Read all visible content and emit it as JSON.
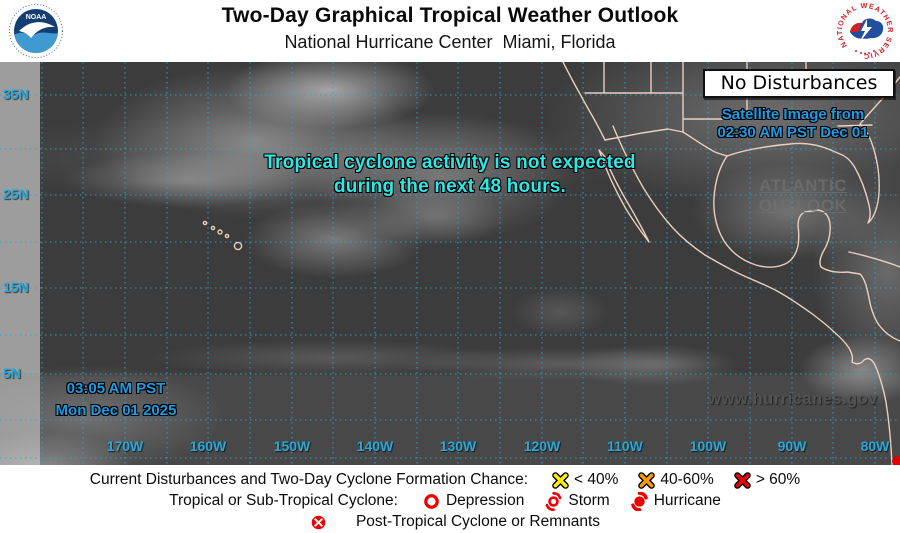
{
  "header": {
    "title": "Two-Day Graphical Tropical Weather Outlook",
    "subtitle": "National Hurricane Center  Miami, Florida",
    "noaa_logo_text": "NOAA",
    "nws_logo_text": "NATIONAL WEATHER SERVICE"
  },
  "map": {
    "status": "No Disturbances",
    "satellite_info": {
      "line1": "Satellite Image from",
      "line2": "02:30 AM PST Dec 01"
    },
    "atlantic_link": {
      "line1": "ATLANTIC",
      "line2": "OUTLOOK"
    },
    "message": {
      "line1": "Tropical cyclone activity is not expected",
      "line2": "during the next 48 hours."
    },
    "issued": {
      "line1": "03:05 AM PST",
      "line2": "Mon Dec 01 2025"
    },
    "website": "www.hurricanes.gov",
    "lat_labels": [
      "35N",
      "25N",
      "15N",
      "5N"
    ],
    "lon_labels": [
      "170W",
      "160W",
      "150W",
      "140W",
      "130W",
      "120W",
      "110W",
      "100W",
      "90W",
      "80W"
    ]
  },
  "legend": {
    "row1_label": "Current Disturbances and Two-Day Cyclone Formation Chance:",
    "row1_items": [
      {
        "symbol": "x-mark-yellow",
        "label": "< 40%"
      },
      {
        "symbol": "x-mark-orange",
        "label": "40-60%"
      },
      {
        "symbol": "x-mark-red",
        "label": "> 60%"
      }
    ],
    "row2_label": "Tropical or Sub-Tropical Cyclone:",
    "row2_items": [
      {
        "symbol": "depression-circle",
        "label": "Depression"
      },
      {
        "symbol": "storm-symbol",
        "label": "Storm"
      },
      {
        "symbol": "hurricane-symbol",
        "label": "Hurricane"
      }
    ],
    "row3_items": [
      {
        "symbol": "post-tropical-circle-x",
        "label": "Post-Tropical Cyclone or Remnants"
      }
    ]
  },
  "colors": {
    "info_blue": "#1d9ce6",
    "message_cyan": "#2ce8e6",
    "grid_cyan": "#29a7d8",
    "coastline": "#f2d6c4",
    "land_link_gray": "#6f6f6f",
    "website_gray": "#525252",
    "chance_low_yellow": "#ffee00",
    "chance_medium_orange": "#ff9900",
    "chance_high_red": "#ee0000"
  }
}
